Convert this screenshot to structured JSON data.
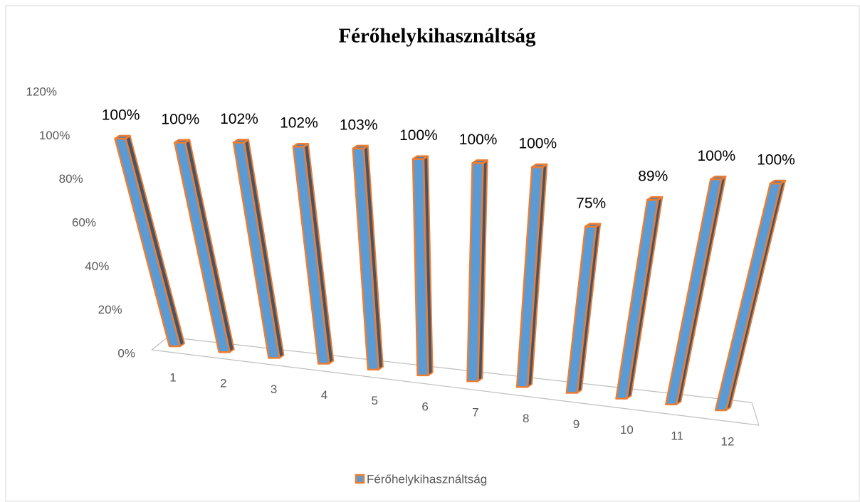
{
  "chart_data": {
    "type": "bar3d",
    "title": "Férőhelykihasználtság",
    "categories": [
      "1",
      "2",
      "3",
      "4",
      "5",
      "6",
      "7",
      "8",
      "9",
      "10",
      "11",
      "12"
    ],
    "series": [
      {
        "name": "Férőhelykihasználtság",
        "color": "#5b9bd5",
        "edge_color": "#ed7d31",
        "values": [
          100,
          100,
          102,
          102,
          103,
          100,
          100,
          100,
          75,
          89,
          100,
          100
        ],
        "value_labels": [
          "100%",
          "100%",
          "102%",
          "102%",
          "103%",
          "100%",
          "100%",
          "100%",
          "75%",
          "89%",
          "100%",
          "100%"
        ]
      }
    ],
    "ylim": [
      0,
      120
    ],
    "yticks": [
      {
        "value": 0,
        "label": "0%"
      },
      {
        "value": 20,
        "label": "20%"
      },
      {
        "value": 40,
        "label": "40%"
      },
      {
        "value": 60,
        "label": "60%"
      },
      {
        "value": 80,
        "label": "80%"
      },
      {
        "value": 100,
        "label": "100%"
      },
      {
        "value": 120,
        "label": "120%"
      }
    ],
    "legend": "bottom"
  }
}
